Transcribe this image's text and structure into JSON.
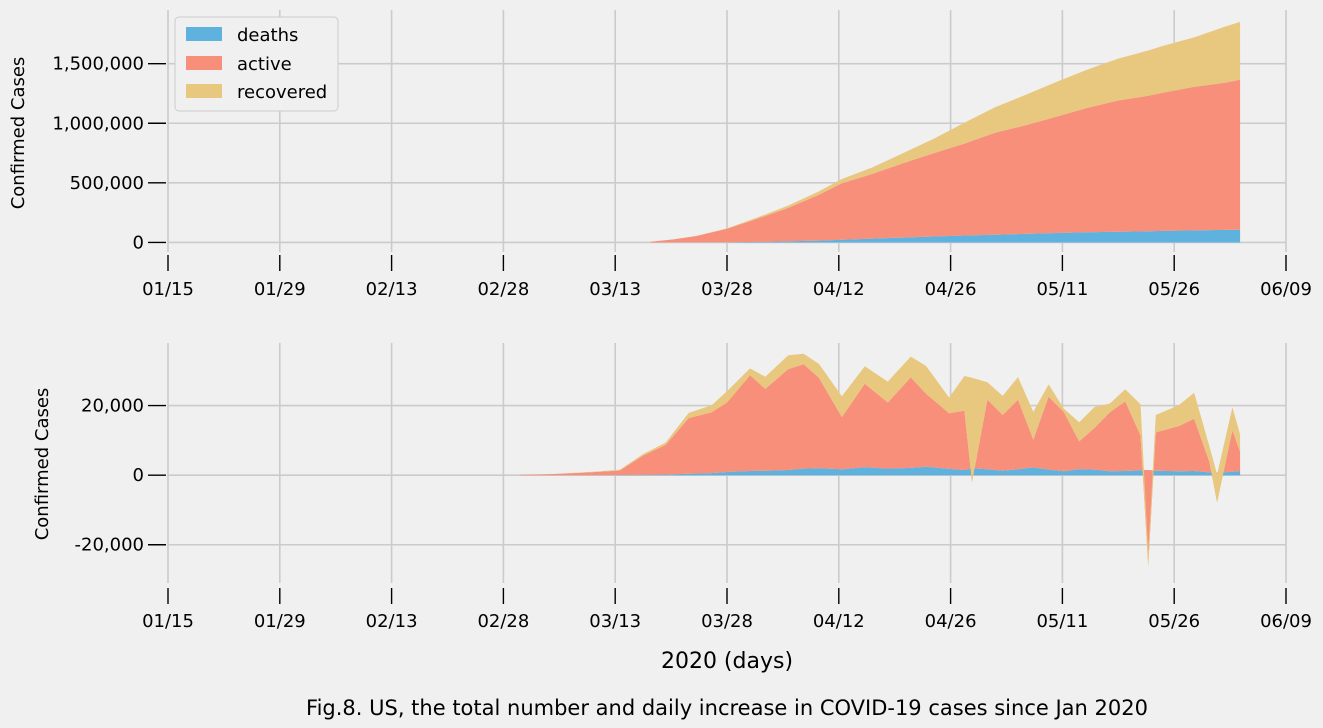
{
  "figure": {
    "caption": "Fig.8. US, the total number and daily increase in COVID-19 cases since Jan 2020",
    "xlabel": "2020 (days)"
  },
  "colors": {
    "background": "#f0f0f0",
    "grid": "#cbcbcb",
    "deaths": "#5eb2dd",
    "active": "#f78f7b",
    "recovered": "#e8c77f",
    "negative_overlap": "#ec9a4a"
  },
  "chart_data": [
    {
      "type": "area",
      "stacked": true,
      "title": "",
      "ylabel": "Confirmed Cases",
      "xlabel": "",
      "x_axis": {
        "start": "2020-01-15",
        "end": "2020-06-09",
        "tick_labels": [
          "01/15",
          "01/29",
          "02/13",
          "02/28",
          "03/13",
          "03/28",
          "04/12",
          "04/26",
          "05/11",
          "05/26",
          "06/09"
        ]
      },
      "ylim": [
        -80000,
        1950000
      ],
      "y_ticks": [
        0,
        500000,
        1000000,
        1500000
      ],
      "y_tick_labels": [
        "0",
        "500,000",
        "1,000,000",
        "1,500,000"
      ],
      "grid": true,
      "legend": {
        "placement": "top-left",
        "entries": [
          "deaths",
          "active",
          "recovered"
        ]
      },
      "x": [
        "2020-03-18",
        "2020-03-21",
        "2020-03-24",
        "2020-03-28",
        "2020-04-01",
        "2020-04-05",
        "2020-04-09",
        "2020-04-12",
        "2020-04-16",
        "2020-04-20",
        "2020-04-24",
        "2020-04-28",
        "2020-05-02",
        "2020-05-06",
        "2020-05-10",
        "2020-05-14",
        "2020-05-18",
        "2020-05-22",
        "2020-05-24",
        "2020-05-28",
        "2020-06-01",
        "2020-06-03"
      ],
      "series": [
        {
          "name": "deaths",
          "values": [
            100,
            300,
            700,
            2000,
            5000,
            9500,
            16000,
            22000,
            32000,
            41000,
            50000,
            58000,
            65000,
            72000,
            79000,
            85000,
            90000,
            94000,
            97000,
            101000,
            105000,
            107000
          ]
        },
        {
          "name": "active",
          "values": [
            5900,
            25700,
            53300,
            113000,
            195000,
            280500,
            384000,
            475000,
            543000,
            624000,
            700000,
            771000,
            855000,
            911000,
            975000,
            1043000,
            1100000,
            1136000,
            1160000,
            1204000,
            1235000,
            1258000
          ]
        },
        {
          "name": "recovered",
          "values": [
            0,
            0,
            1000,
            3000,
            10000,
            20000,
            28000,
            35000,
            55000,
            85000,
            120000,
            175000,
            215000,
            255000,
            292000,
            320000,
            350000,
            380000,
            393000,
            415000,
            470000,
            485000
          ]
        }
      ]
    },
    {
      "type": "area",
      "stacked": true,
      "title": "",
      "ylabel": "Confirmed Cases",
      "xlabel": "2020 (days)",
      "x_axis": {
        "start": "2020-01-15",
        "end": "2020-06-09",
        "tick_labels": [
          "01/15",
          "01/29",
          "02/13",
          "02/28",
          "03/13",
          "03/28",
          "04/12",
          "04/26",
          "05/11",
          "05/26",
          "06/09"
        ]
      },
      "ylim": [
        -31000,
        38000
      ],
      "y_ticks": [
        -20000,
        0,
        20000
      ],
      "y_tick_labels": [
        "-20,000",
        "0",
        "20,000"
      ],
      "grid": true,
      "x": [
        "2020-03-01",
        "2020-03-05",
        "2020-03-10",
        "2020-03-14",
        "2020-03-17",
        "2020-03-20",
        "2020-03-23",
        "2020-03-26",
        "2020-03-28",
        "2020-03-31",
        "2020-04-02",
        "2020-04-05",
        "2020-04-07",
        "2020-04-09",
        "2020-04-12",
        "2020-04-15",
        "2020-04-18",
        "2020-04-21",
        "2020-04-23",
        "2020-04-26",
        "2020-04-28",
        "2020-04-29",
        "2020-05-01",
        "2020-05-03",
        "2020-05-05",
        "2020-05-07",
        "2020-05-09",
        "2020-05-11",
        "2020-05-13",
        "2020-05-15",
        "2020-05-17",
        "2020-05-19",
        "2020-05-21",
        "2020-05-22",
        "2020-05-23",
        "2020-05-26",
        "2020-05-28",
        "2020-05-30",
        "2020-05-31",
        "2020-06-02",
        "2020-06-03"
      ],
      "series": [
        {
          "name": "deaths",
          "values": [
            0,
            0,
            0,
            50,
            100,
            200,
            400,
            600,
            900,
            1200,
            1300,
            1500,
            1900,
            2000,
            1700,
            2300,
            1900,
            2100,
            2400,
            1800,
            1500,
            2000,
            1700,
            1300,
            1700,
            2200,
            1600,
            1100,
            1700,
            1600,
            1100,
            1200,
            1400,
            1500,
            1300,
            1100,
            1200,
            800,
            700,
            1000,
            1200
          ]
        },
        {
          "name": "active",
          "values": [
            100,
            300,
            800,
            1300,
            5500,
            8500,
            16000,
            17500,
            20000,
            27500,
            23500,
            29000,
            30000,
            26000,
            15000,
            24000,
            19000,
            26000,
            21000,
            16000,
            17000,
            -4000,
            20000,
            16000,
            20000,
            8000,
            21000,
            17000,
            8000,
            12000,
            17000,
            20000,
            10000,
            -27500,
            11000,
            13000,
            15000,
            3000,
            -8500,
            12000,
            5500
          ]
        },
        {
          "name": "recovered",
          "values": [
            0,
            0,
            100,
            200,
            400,
            700,
            1500,
            2000,
            3200,
            2000,
            3500,
            4000,
            3000,
            4000,
            6000,
            5000,
            6000,
            6000,
            8000,
            4500,
            10000,
            30000,
            5000,
            5500,
            6500,
            8000,
            3500,
            1000,
            5500,
            6000,
            2500,
            3500,
            9000,
            4000,
            5000,
            6000,
            7500,
            4500,
            8000,
            6500,
            5000
          ]
        }
      ]
    }
  ]
}
